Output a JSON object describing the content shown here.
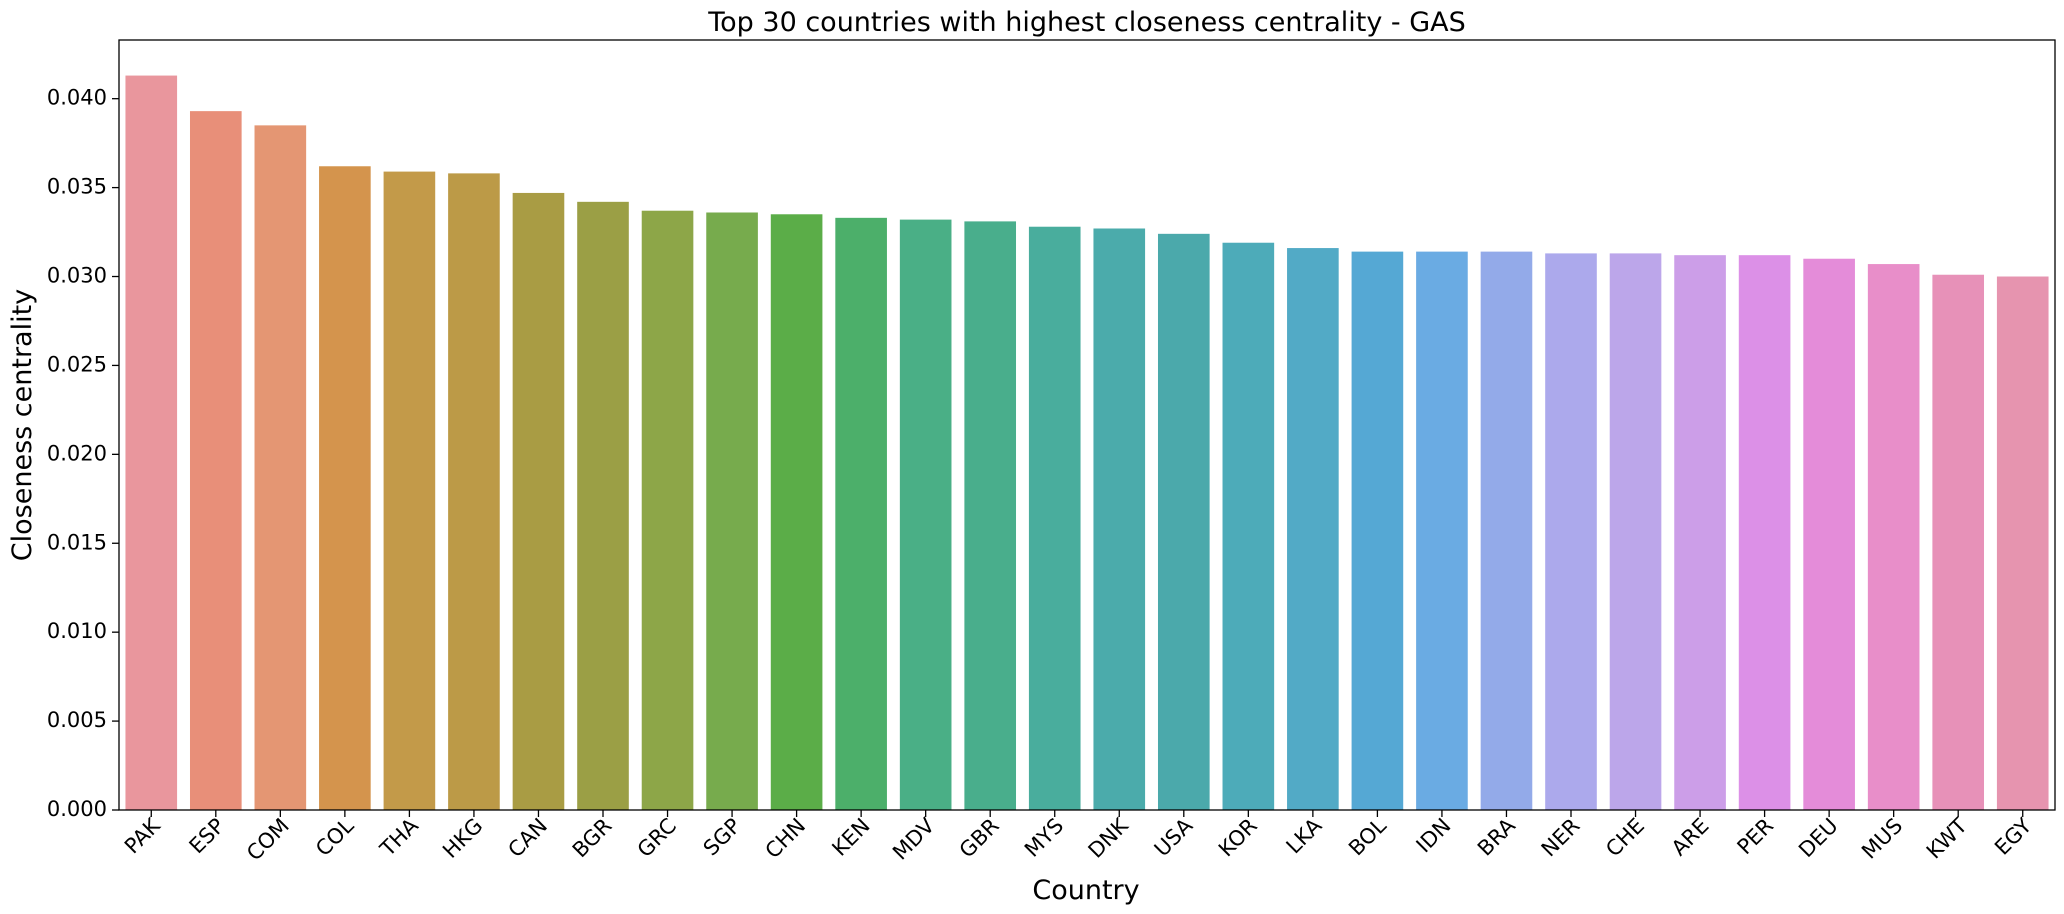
{
  "chart_data": {
    "type": "bar",
    "title": "Top 30 countries with highest closeness centrality - GAS",
    "xlabel": "Country",
    "ylabel": "Closeness centrality",
    "ylim": [
      0,
      0.0433
    ],
    "yticks": [
      "0.000",
      "0.005",
      "0.010",
      "0.015",
      "0.020",
      "0.025",
      "0.030",
      "0.035",
      "0.040"
    ],
    "grid": false,
    "categories": [
      "PAK",
      "ESP",
      "COM",
      "COL",
      "THA",
      "HKG",
      "CAN",
      "BGR",
      "GRC",
      "SGP",
      "CHN",
      "KEN",
      "MDV",
      "GBR",
      "MYS",
      "DNK",
      "USA",
      "KOR",
      "LKA",
      "BOL",
      "IDN",
      "BRA",
      "NER",
      "CHE",
      "ARE",
      "PER",
      "DEU",
      "MUS",
      "KWT",
      "EGY"
    ],
    "values": [
      0.0413,
      0.0393,
      0.0385,
      0.0362,
      0.0359,
      0.0358,
      0.0347,
      0.0342,
      0.0337,
      0.0336,
      0.0335,
      0.0333,
      0.0332,
      0.0331,
      0.0328,
      0.0327,
      0.0324,
      0.0319,
      0.0316,
      0.0314,
      0.0314,
      0.0314,
      0.0313,
      0.0313,
      0.0312,
      0.0312,
      0.031,
      0.0307,
      0.0301,
      0.03
    ],
    "colors": [
      "#e9969d",
      "#e88f79",
      "#e49673",
      "#d4944d",
      "#c39a49",
      "#bc9a47",
      "#a99c44",
      "#9b9f45",
      "#8da648",
      "#77ab4d",
      "#5bad48",
      "#4caf6a",
      "#4aaf86",
      "#49ae8c",
      "#49ad9d",
      "#4babab",
      "#4ba9ab",
      "#4dabb9",
      "#52aac6",
      "#55a8d4",
      "#6aabe3",
      "#93aae9",
      "#aca9ec",
      "#bca6ea",
      "#cc9ee8",
      "#dc90e7",
      "#e48cd9",
      "#e88ec9",
      "#e791b8",
      "#e694af"
    ]
  }
}
